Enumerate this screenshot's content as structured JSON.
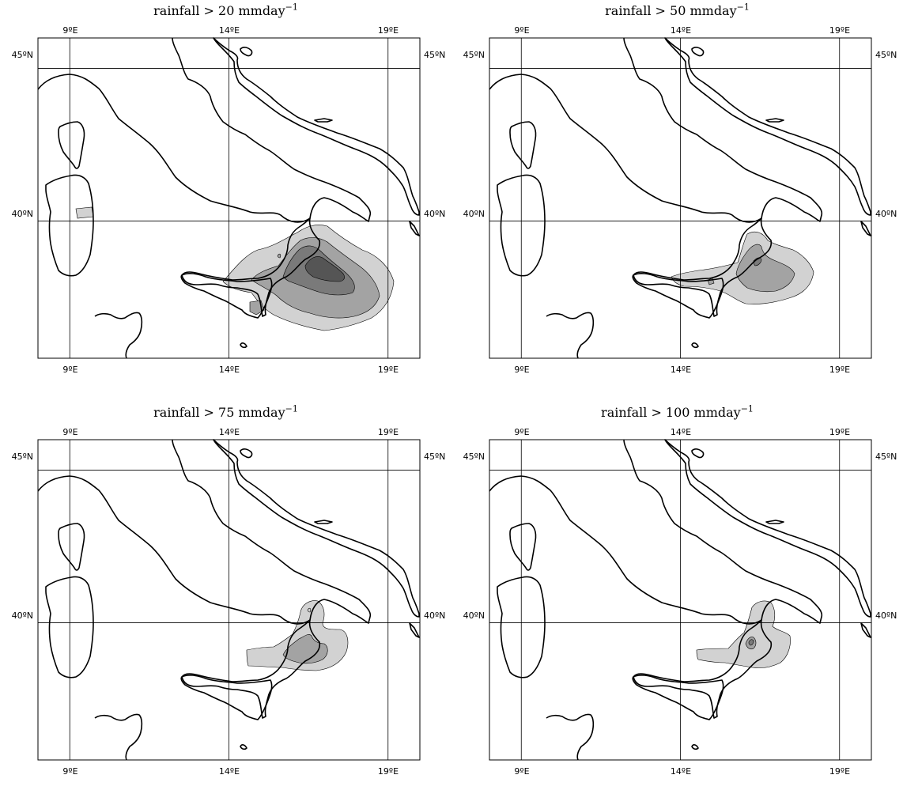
{
  "figure": {
    "panels": [
      {
        "title_prefix": "rainfall > 20 mmday",
        "title_sup": "−1",
        "threshold_mm_per_day": 20,
        "lon_ticks": [
          "9ºE",
          "14ºE",
          "19ºE"
        ],
        "lat_ticks": [
          "45ºN",
          "40ºN"
        ]
      },
      {
        "title_prefix": "rainfall > 50 mmday",
        "title_sup": "−1",
        "threshold_mm_per_day": 50,
        "lon_ticks": [
          "9ºE",
          "14ºE",
          "19ºE"
        ],
        "lat_ticks": [
          "45ºN",
          "40ºN"
        ]
      },
      {
        "title_prefix": "rainfall > 75 mmday",
        "title_sup": "−1",
        "threshold_mm_per_day": 75,
        "lon_ticks": [
          "9ºE",
          "14ºE",
          "19ºE"
        ],
        "lat_ticks": [
          "45ºN",
          "40ºN"
        ]
      },
      {
        "title_prefix": "rainfall > 100 mmday",
        "title_sup": "−1",
        "threshold_mm_per_day": 100,
        "lon_ticks": [
          "9ºE",
          "14ºE",
          "19ºE"
        ],
        "lat_ticks": [
          "45ºN",
          "40ºN"
        ]
      }
    ],
    "map_extent": {
      "lon_min": 8,
      "lon_max": 20,
      "lat_min": 35.5,
      "lat_max": 46
    },
    "gridlines": {
      "lon": [
        9,
        14,
        19
      ],
      "lat": [
        45,
        40
      ]
    },
    "shading_colors": [
      "#d2d2d2",
      "#a3a3a3",
      "#7a7a7a",
      "#555555"
    ],
    "coast_color": "#000000",
    "background": "#ffffff"
  }
}
